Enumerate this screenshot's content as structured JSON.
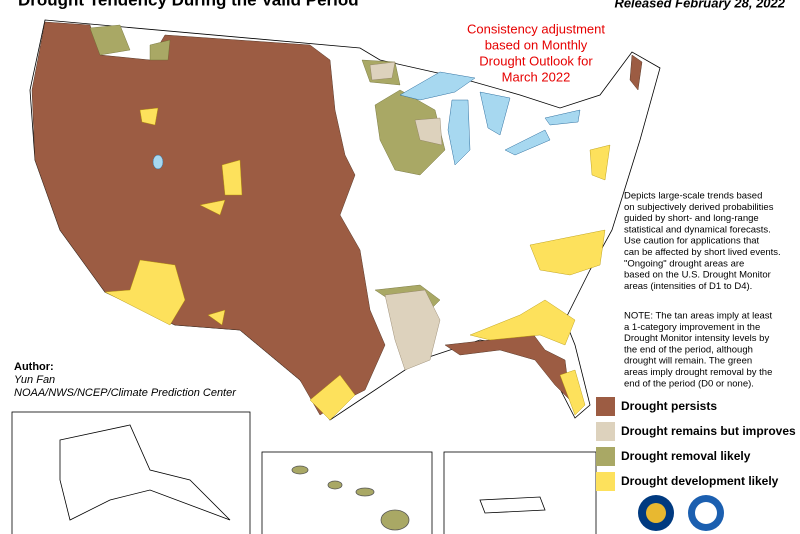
{
  "header": {
    "title": "Drought Tendency During the Valid Period",
    "released": "Released February 28, 2022"
  },
  "annotation": [
    "Consistency adjustment",
    "based on Monthly",
    "Drought Outlook for",
    "March 2022"
  ],
  "description": [
    "Depicts large-scale trends based",
    "on subjectively derived probabilities",
    "guided by short- and long-range",
    "statistical and dynamical forecasts.",
    "Use caution for applications that",
    "can be affected by short lived events.",
    "\"Ongoing\" drought areas are",
    "based on the U.S. Drought Monitor",
    "areas (intensities of D1 to D4)."
  ],
  "note": [
    "NOTE: The tan areas imply at least",
    "a 1-category improvement in the",
    "Drought Monitor intensity levels by",
    "the end of the period, although",
    "drought will remain. The green",
    "areas imply drought removal by the",
    "end of the period (D0 or none)."
  ],
  "author": {
    "label": "Author:",
    "name": "Yun Fan",
    "org": "NOAA/NWS/NCEP/Climate Prediction Center"
  },
  "legend": [
    {
      "label": "Drought persists",
      "color": "#9c5c43"
    },
    {
      "label": "Drought remains but improves",
      "color": "#ddd2bd"
    },
    {
      "label": "Drought removal likely",
      "color": "#a9a865"
    },
    {
      "label": "Drought development likely",
      "color": "#fde15c"
    }
  ]
}
